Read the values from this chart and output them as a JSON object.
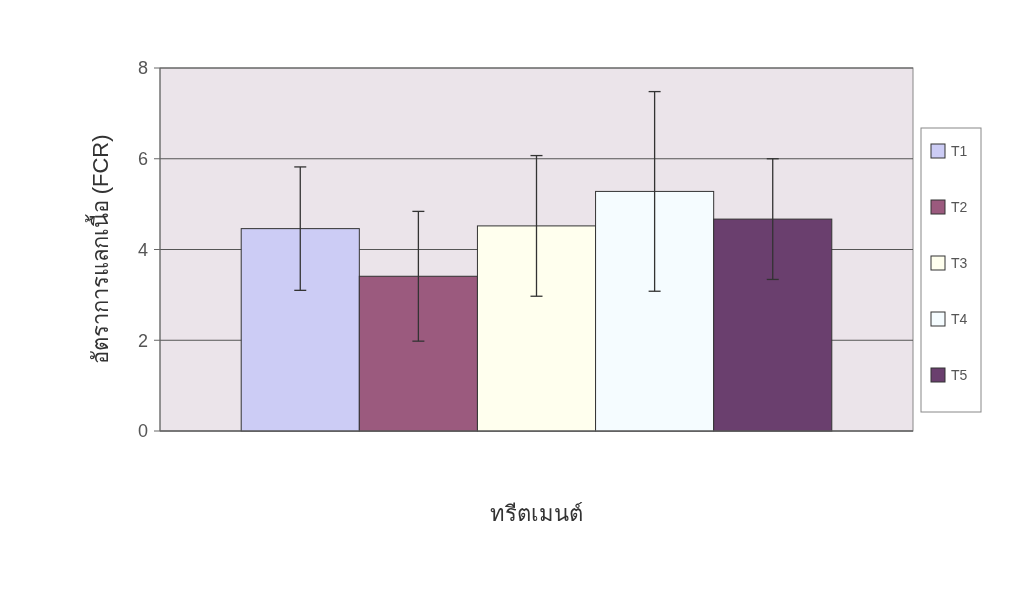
{
  "chart_data": {
    "type": "bar",
    "xlabel": "ทรีตเมนต์",
    "ylabel": "อัตราการแลกเนื้อ (FCR)",
    "categories": [
      null
    ],
    "series": [
      {
        "name": "T1",
        "color": "#ccccf5",
        "values": [
          4.46
        ],
        "errors": [
          1.36
        ]
      },
      {
        "name": "T2",
        "color": "#9b5a7e",
        "values": [
          3.41
        ],
        "errors": [
          1.43
        ]
      },
      {
        "name": "T3",
        "color": "#ffffee",
        "values": [
          4.52
        ],
        "errors": [
          1.55
        ]
      },
      {
        "name": "T4",
        "color": "#f5fcff",
        "values": [
          5.28
        ],
        "errors": [
          2.2
        ]
      },
      {
        "name": "T5",
        "color": "#6a3f6e",
        "values": [
          4.67
        ],
        "errors": [
          1.33
        ]
      }
    ],
    "ylim": [
      0,
      8
    ],
    "yticks": [
      0,
      2,
      4,
      6,
      8
    ],
    "grid": "y",
    "legend": "right"
  }
}
